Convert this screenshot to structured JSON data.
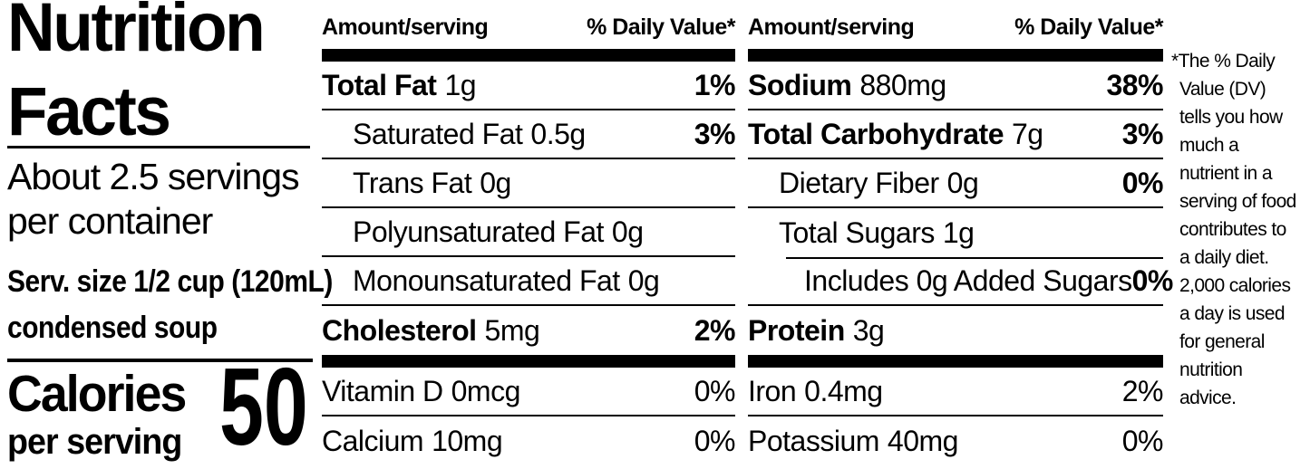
{
  "colors": {
    "text": "#000000",
    "background": "#ffffff"
  },
  "left_panel": {
    "title_line1": "Nutrition",
    "title_line2": "Facts",
    "servings_line1": "About 2.5 servings",
    "servings_line2": "per container",
    "serving_size_line1": "Serv. size 1/2 cup (120mL)",
    "serving_size_line2": "condensed soup",
    "calories_label": "Calories",
    "calories_sublabel": "per serving",
    "calories_value": "50"
  },
  "columns": [
    {
      "header": {
        "amount": "Amount/serving",
        "daily_value": "% Daily Value*"
      },
      "rows": [
        {
          "name": "Total Fat",
          "value": "1g",
          "dv": "1%"
        },
        {
          "name": "Saturated Fat",
          "value": "0.5g",
          "dv": "3%"
        },
        {
          "name": "Trans Fat",
          "value": "0g",
          "dv": ""
        },
        {
          "name": "Polyunsaturated Fat",
          "value": "0g",
          "dv": ""
        },
        {
          "name": "Monounsaturated Fat",
          "value": "0g",
          "dv": ""
        },
        {
          "name": "Cholesterol",
          "value": "5mg",
          "dv": "2%"
        },
        {
          "name": "Vitamin D",
          "value": "0mcg",
          "dv": "0%"
        },
        {
          "name": "Calcium",
          "value": "10mg",
          "dv": "0%"
        }
      ]
    },
    {
      "header": {
        "amount": "Amount/serving",
        "daily_value": "% Daily Value*"
      },
      "rows": [
        {
          "name": "Sodium",
          "value": "880mg",
          "dv": "38%"
        },
        {
          "name": "Total Carbohydrate",
          "value": "7g",
          "dv": "3%"
        },
        {
          "name": "Dietary Fiber",
          "value": "0g",
          "dv": "0%"
        },
        {
          "name": "Total Sugars",
          "value": "1g",
          "dv": ""
        },
        {
          "name": "Includes 0g Added Sugars",
          "value": "",
          "dv": "0%"
        },
        {
          "name": "Protein",
          "value": "3g",
          "dv": ""
        },
        {
          "name": "Iron",
          "value": "0.4mg",
          "dv": "2%"
        },
        {
          "name": "Potassium",
          "value": "40mg",
          "dv": "0%"
        }
      ]
    }
  ],
  "footnote": {
    "lines": [
      "*The % Daily",
      "Value (DV)",
      "tells you how",
      "much a",
      "nutrient in a",
      "serving of food",
      "contributes to",
      "a daily diet.",
      "2,000 calories",
      "a day is used",
      "for general",
      "nutrition",
      "advice."
    ]
  }
}
